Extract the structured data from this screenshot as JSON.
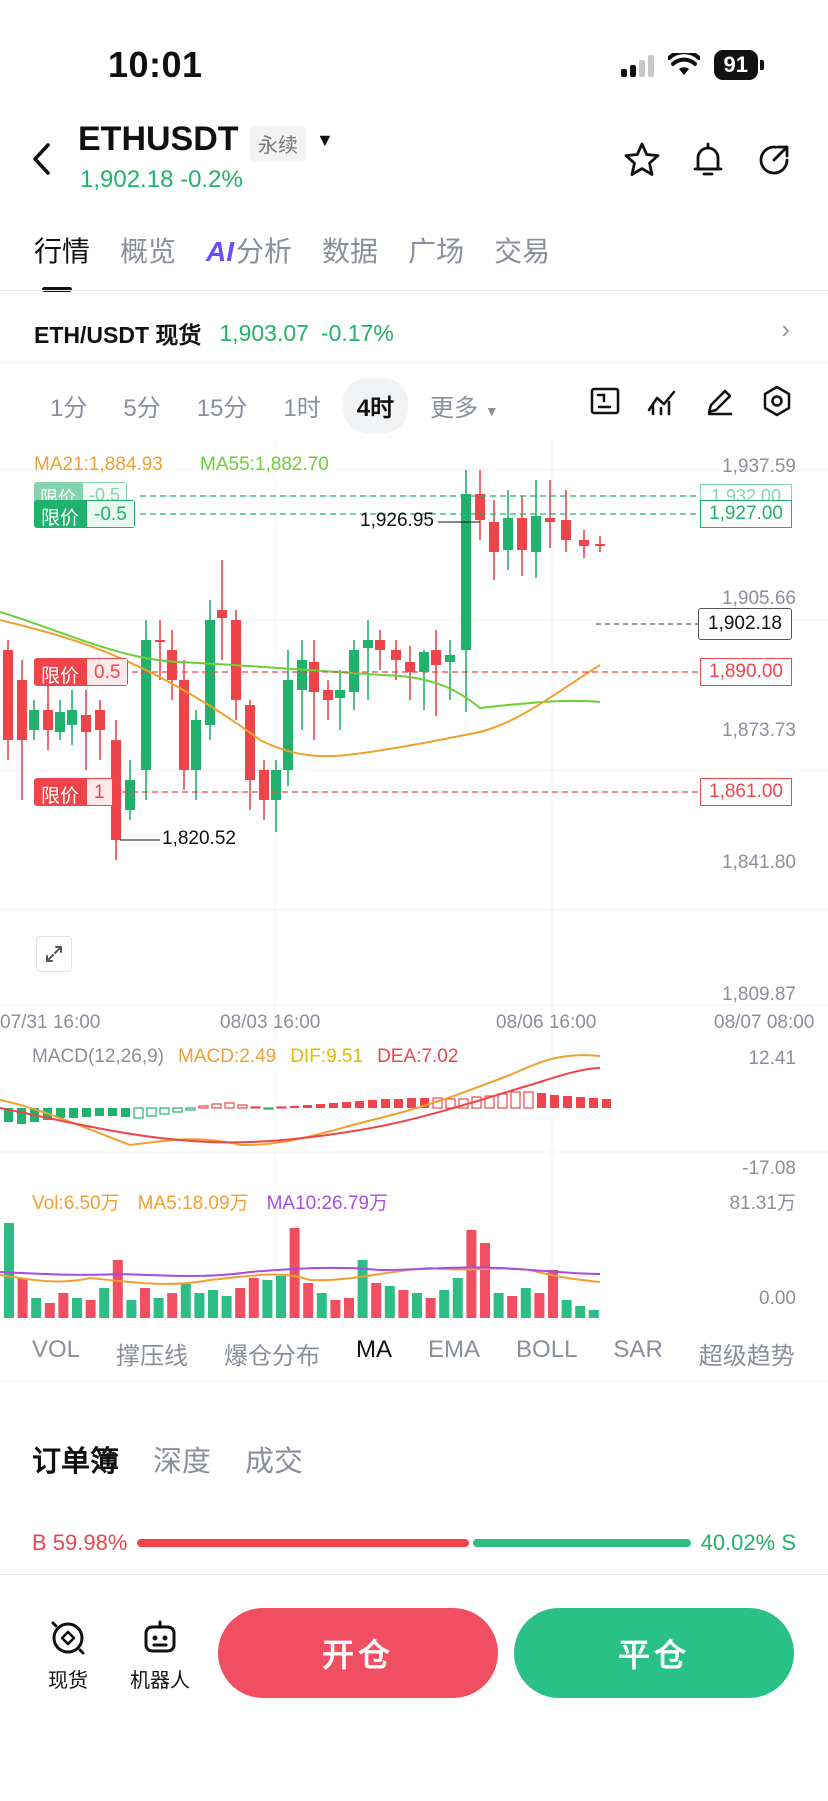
{
  "status_bar": {
    "time": "10:01",
    "battery": "91"
  },
  "header": {
    "symbol": "ETHUSDT",
    "contract_type": "永续",
    "price": "1,902.18",
    "change": "-0.2%",
    "icons": [
      "back-icon",
      "star-icon",
      "bell-icon",
      "share-icon"
    ]
  },
  "tabs": [
    "行情",
    "概览",
    "分析",
    "数据",
    "广场",
    "交易"
  ],
  "tabs_ai_badge": "AI",
  "spot": {
    "label": "ETH/USDT 现货",
    "price": "1,903.07",
    "change": "-0.17%"
  },
  "timeframes": [
    "1分",
    "5分",
    "15分",
    "1时",
    "4时",
    "更多"
  ],
  "active_timeframe": "4时",
  "toolbar_icons": [
    "chart-settings-icon",
    "indicators-icon",
    "draw-icon",
    "settings-icon"
  ],
  "chart": {
    "ma21": "MA21:1,884.93",
    "ma55": "MA55:1,882.70",
    "price_scale": [
      "1,937.59",
      "1,905.66",
      "1,873.73",
      "1,841.80",
      "1,809.87"
    ],
    "current_price": "1,902.18",
    "high_label": "1,926.95",
    "low_label": "1,820.52",
    "time_labels": [
      "07/31 16:00",
      "08/03 16:00",
      "08/06 16:00",
      "08/07 08:00"
    ],
    "limit_orders": [
      {
        "label": "限价",
        "qty": "-0.5",
        "price": "1,932.00",
        "side": "sell"
      },
      {
        "label": "限价",
        "qty": "-0.5",
        "price": "1,927.00",
        "side": "sell"
      },
      {
        "label": "限价",
        "qty": "0.5",
        "price": "1,890.00",
        "side": "buy"
      },
      {
        "label": "限价",
        "qty": "1",
        "price": "1,861.00",
        "side": "buy"
      }
    ],
    "macd": {
      "params": "MACD(12,26,9)",
      "macd": "MACD:2.49",
      "dif": "DIF:9.51",
      "dea": "DEA:7.02",
      "scale_top": "12.41",
      "scale_bottom": "-17.08"
    },
    "volume": {
      "vol": "Vol:6.50万",
      "ma5": "MA5:18.09万",
      "ma10": "MA10:26.79万",
      "scale_top": "81.31万",
      "scale_bottom": "0.00"
    },
    "colors": {
      "up": "#20b26c",
      "down": "#ef454a",
      "ma21": "#f0a030",
      "ma55": "#6bcf3a"
    }
  },
  "indicators": [
    "VOL",
    "撑压线",
    "爆仓分布",
    "MA",
    "EMA",
    "BOLL",
    "SAR",
    "超级趋势"
  ],
  "active_indicator": "MA",
  "order_book": {
    "tabs": [
      "订单簿",
      "深度",
      "成交"
    ],
    "buy_ratio": "B 59.98%",
    "sell_ratio": "40.02% S",
    "buy_fraction": 0.5998
  },
  "bottom_bar": {
    "spot_label": "现货",
    "robot_label": "机器人",
    "open_label": "开仓",
    "close_label": "平仓"
  }
}
